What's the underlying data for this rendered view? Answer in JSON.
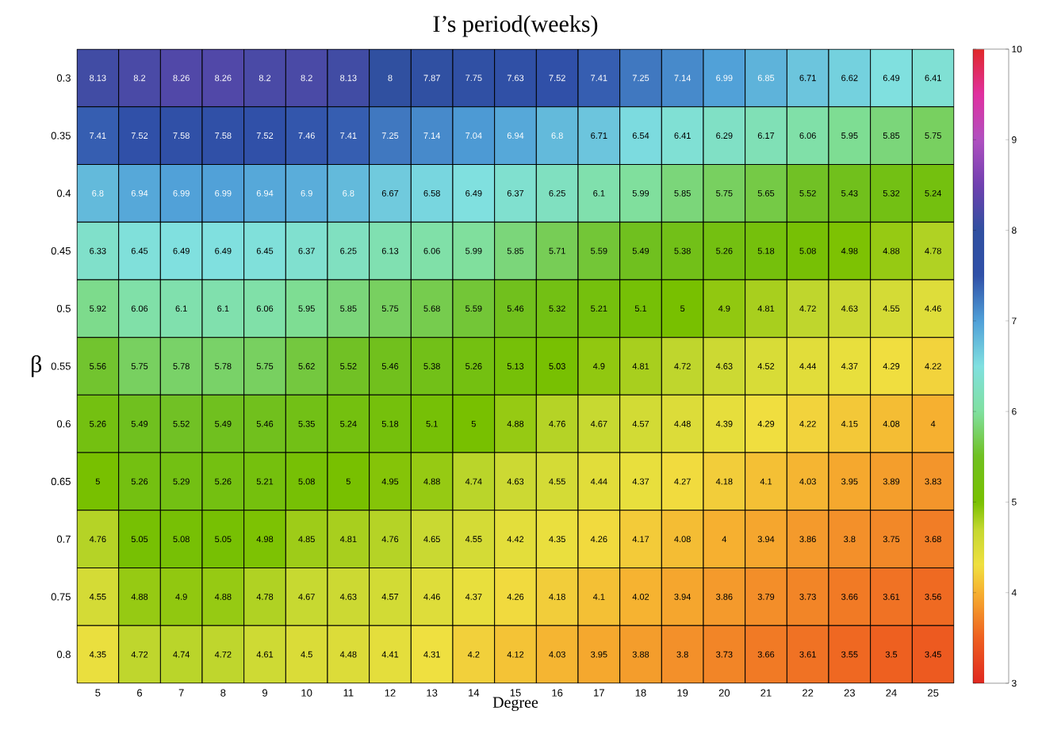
{
  "chart_data": {
    "type": "heatmap",
    "title": "I’s period(weeks)",
    "xlabel": "Degree",
    "ylabel": "β",
    "categories": [
      "5",
      "6",
      "7",
      "8",
      "9",
      "10",
      "11",
      "12",
      "13",
      "14",
      "15",
      "16",
      "17",
      "18",
      "19",
      "20",
      "21",
      "22",
      "23",
      "24",
      "25"
    ],
    "y_categories": [
      "0.3",
      "0.35",
      "0.4",
      "0.45",
      "0.5",
      "0.55",
      "0.6",
      "0.65",
      "0.7",
      "0.75",
      "0.8"
    ],
    "cells": [
      [
        8.13,
        8.2,
        8.26,
        8.26,
        8.2,
        8.2,
        8.13,
        8,
        7.87,
        7.75,
        7.63,
        7.52,
        7.41,
        7.25,
        7.14,
        6.99,
        6.85,
        6.71,
        6.62,
        6.49,
        6.41
      ],
      [
        7.41,
        7.52,
        7.58,
        7.58,
        7.52,
        7.46,
        7.41,
        7.25,
        7.14,
        7.04,
        6.94,
        6.8,
        6.71,
        6.54,
        6.41,
        6.29,
        6.17,
        6.06,
        5.95,
        5.85,
        5.75
      ],
      [
        6.8,
        6.94,
        6.99,
        6.99,
        6.94,
        6.9,
        6.8,
        6.67,
        6.58,
        6.49,
        6.37,
        6.25,
        6.1,
        5.99,
        5.85,
        5.75,
        5.65,
        5.52,
        5.43,
        5.32,
        5.24
      ],
      [
        6.33,
        6.45,
        6.49,
        6.49,
        6.45,
        6.37,
        6.25,
        6.13,
        6.06,
        5.99,
        5.85,
        5.71,
        5.59,
        5.49,
        5.38,
        5.26,
        5.18,
        5.08,
        4.98,
        4.88,
        4.78
      ],
      [
        5.92,
        6.06,
        6.1,
        6.1,
        6.06,
        5.95,
        5.85,
        5.75,
        5.68,
        5.59,
        5.46,
        5.32,
        5.21,
        5.1,
        5,
        4.9,
        4.81,
        4.72,
        4.63,
        4.55,
        4.46
      ],
      [
        5.56,
        5.75,
        5.78,
        5.78,
        5.75,
        5.62,
        5.52,
        5.46,
        5.38,
        5.26,
        5.13,
        5.03,
        4.9,
        4.81,
        4.72,
        4.63,
        4.52,
        4.44,
        4.37,
        4.29,
        4.22
      ],
      [
        5.26,
        5.49,
        5.52,
        5.49,
        5.46,
        5.35,
        5.24,
        5.18,
        5.1,
        5,
        4.88,
        4.76,
        4.67,
        4.57,
        4.48,
        4.39,
        4.29,
        4.22,
        4.15,
        4.08,
        4
      ],
      [
        5,
        5.26,
        5.29,
        5.26,
        5.21,
        5.08,
        5,
        4.95,
        4.88,
        4.74,
        4.63,
        4.55,
        4.44,
        4.37,
        4.27,
        4.18,
        4.1,
        4.03,
        3.95,
        3.89,
        3.83
      ],
      [
        4.76,
        5.05,
        5.08,
        5.05,
        4.98,
        4.85,
        4.81,
        4.76,
        4.65,
        4.55,
        4.42,
        4.35,
        4.26,
        4.17,
        4.08,
        4,
        3.94,
        3.86,
        3.8,
        3.75,
        3.68
      ],
      [
        4.55,
        4.88,
        4.9,
        4.88,
        4.78,
        4.67,
        4.63,
        4.57,
        4.46,
        4.37,
        4.26,
        4.18,
        4.1,
        4.02,
        3.94,
        3.86,
        3.79,
        3.73,
        3.66,
        3.61,
        3.56
      ],
      [
        4.35,
        4.72,
        4.74,
        4.72,
        4.61,
        4.5,
        4.48,
        4.41,
        4.31,
        4.2,
        4.12,
        4.03,
        3.95,
        3.88,
        3.8,
        3.73,
        3.66,
        3.61,
        3.55,
        3.5,
        3.45
      ]
    ],
    "clim": [
      3,
      10
    ],
    "cticks": [
      3,
      4,
      5,
      6,
      7,
      8,
      9,
      10
    ],
    "data_labels": true
  }
}
